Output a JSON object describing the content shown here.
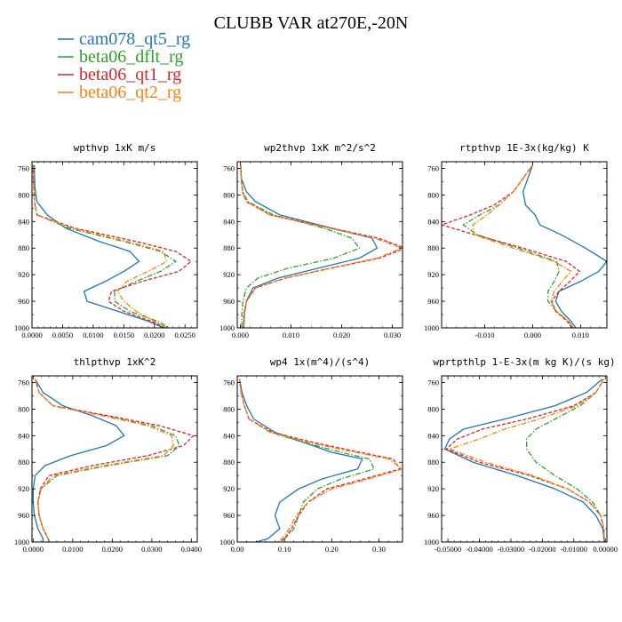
{
  "title": "CLUBB VAR at270E,-20N",
  "chart_data": {
    "title": "CLUBB VAR at270E,-20N",
    "legend": [
      {
        "name": "cam078_qt5_rg",
        "color": "#1f77b4",
        "dash": "solid"
      },
      {
        "name": "beta06_dflt_rg",
        "color": "#2ca02c",
        "dash": "dashdot"
      },
      {
        "name": "beta06_qt1_rg",
        "color": "#d62728",
        "dash": "dash"
      },
      {
        "name": "beta06_qt2_rg",
        "color": "#ff7f0e",
        "dash": "dashdot"
      }
    ],
    "panels": [
      {
        "type": "line",
        "title": "wpthvp   1xK m/s",
        "xlim": [
          0,
          0.027
        ],
        "ylim": [
          1000,
          750
        ],
        "invert_y": true,
        "xticks": [
          0,
          0.005,
          0.01,
          0.015,
          0.02,
          0.025
        ],
        "xticklabels": [
          "0.0000",
          "0.0050",
          "0.0100",
          "0.0150",
          "0.0200",
          "0.0250"
        ],
        "yticks": [
          760,
          800,
          840,
          880,
          920,
          960,
          1000
        ],
        "yticklabels": [
          "760",
          "800",
          "840",
          "880",
          "920",
          "960",
          "1000"
        ],
        "y": [
          755,
          770,
          790,
          810,
          830,
          850,
          870,
          885,
          900,
          915,
          930,
          945,
          960,
          975,
          990,
          1000
        ],
        "series": [
          {
            "values": [
              0.0004,
              0.0004,
              0.0005,
              0.0008,
              0.0025,
              0.0055,
              0.011,
              0.016,
              0.0175,
              0.015,
              0.012,
              0.0085,
              0.009,
              0.014,
              0.019,
              0.0215
            ]
          },
          {
            "values": [
              0.0002,
              0.0002,
              0.0003,
              0.0004,
              0.0008,
              0.006,
              0.015,
              0.021,
              0.0235,
              0.021,
              0.017,
              0.0135,
              0.0135,
              0.016,
              0.0205,
              0.0225
            ]
          },
          {
            "values": [
              0.0002,
              0.0002,
              0.0003,
              0.0004,
              0.0008,
              0.007,
              0.017,
              0.0235,
              0.026,
              0.024,
              0.018,
              0.013,
              0.0125,
              0.015,
              0.0195,
              0.022
            ]
          },
          {
            "values": [
              0.0002,
              0.0002,
              0.0003,
              0.0004,
              0.0008,
              0.0065,
              0.0155,
              0.0215,
              0.022,
              0.019,
              0.0155,
              0.014,
              0.015,
              0.017,
              0.02,
              0.022
            ]
          }
        ]
      },
      {
        "type": "line",
        "title": "wp2thvp   1xK m^2/s^2",
        "xlim": [
          -0.0006,
          0.032
        ],
        "ylim": [
          1000,
          750
        ],
        "invert_y": true,
        "xticks": [
          0,
          0.01,
          0.02,
          0.03
        ],
        "xticklabels": [
          "0.000",
          "0.010",
          "0.020",
          "0.030"
        ],
        "yticks": [
          760,
          800,
          840,
          880,
          920,
          960,
          1000
        ],
        "yticklabels": [
          "760",
          "800",
          "840",
          "880",
          "920",
          "960",
          "1000"
        ],
        "y": [
          755,
          775,
          795,
          810,
          830,
          850,
          865,
          880,
          895,
          910,
          925,
          940,
          960,
          980,
          1000
        ],
        "series": [
          {
            "values": [
              0.0001,
              0.0002,
              0.0012,
              0.003,
              0.0078,
              0.018,
              0.026,
              0.027,
              0.0235,
              0.0155,
              0.0075,
              0.0025,
              0.0012,
              0.0008,
              0.0007
            ]
          },
          {
            "values": [
              0.0001,
              0.0002,
              0.0005,
              0.0015,
              0.0065,
              0.0165,
              0.022,
              0.0235,
              0.0185,
              0.0095,
              0.0035,
              0.0012,
              0.0005,
              0.0003,
              0.0003
            ]
          },
          {
            "values": [
              0.0001,
              0.0002,
              0.0004,
              0.0012,
              0.006,
              0.018,
              0.0272,
              0.0325,
              0.0275,
              0.018,
              0.009,
              0.003,
              0.0012,
              0.0007,
              0.0006
            ]
          },
          {
            "values": [
              0.0001,
              0.0002,
              0.0004,
              0.0012,
              0.0058,
              0.0175,
              0.0265,
              0.0318,
              0.027,
              0.0178,
              0.0088,
              0.003,
              0.0012,
              0.0007,
              0.0006
            ]
          }
        ]
      },
      {
        "type": "line",
        "title": "rtpthvp   1E-3x(kg/kg) K",
        "xlim": [
          -0.019,
          0.0155
        ],
        "ylim": [
          1000,
          750
        ],
        "invert_y": true,
        "xticks": [
          -0.01,
          0,
          0.01
        ],
        "xticklabels": [
          "-0.010",
          "0.000",
          "0.010"
        ],
        "yticks": [
          760,
          800,
          840,
          880,
          920,
          960,
          1000
        ],
        "yticklabels": [
          "760",
          "800",
          "840",
          "880",
          "920",
          "960",
          "1000"
        ],
        "y": [
          755,
          775,
          795,
          815,
          830,
          845,
          860,
          880,
          900,
          915,
          930,
          945,
          960,
          975,
          990,
          1000
        ],
        "series": [
          {
            "values": [
              0,
              -0.001,
              -0.002,
              -0.0015,
              0.0005,
              0.0015,
              0.006,
              0.011,
              0.0155,
              0.0138,
              0.01,
              0.0055,
              0.0048,
              0.006,
              0.008,
              0.009
            ]
          },
          {
            "values": [
              0,
              -0.002,
              -0.004,
              -0.007,
              -0.011,
              -0.0145,
              -0.0115,
              -0.003,
              0.005,
              0.0055,
              0.0045,
              0.0032,
              0.0032,
              0.005,
              0.0075,
              0.0085
            ]
          },
          {
            "values": [
              0,
              -0.002,
              -0.004,
              -0.008,
              -0.013,
              -0.019,
              -0.012,
              -0.002,
              0.007,
              0.0098,
              0.0078,
              0.0055,
              0.004,
              0.0048,
              0.0072,
              0.0082
            ]
          },
          {
            "values": [
              0,
              -0.002,
              -0.004,
              -0.007,
              -0.0095,
              -0.0125,
              -0.0122,
              -0.004,
              0.0045,
              0.008,
              0.0062,
              0.0045,
              0.0038,
              0.005,
              0.0075,
              0.0085
            ]
          }
        ]
      },
      {
        "type": "line",
        "title": "thlpthvp   1xK^2",
        "xlim": [
          -0.0003,
          0.0415
        ],
        "ylim": [
          1000,
          750
        ],
        "invert_y": true,
        "xticks": [
          0,
          0.01,
          0.02,
          0.03,
          0.04
        ],
        "xticklabels": [
          "0.0000",
          "0.0100",
          "0.0200",
          "0.0300",
          "0.0400"
        ],
        "yticks": [
          760,
          800,
          840,
          880,
          920,
          960,
          1000
        ],
        "yticklabels": [
          "760",
          "800",
          "840",
          "880",
          "920",
          "960",
          "1000"
        ],
        "y": [
          755,
          775,
          795,
          810,
          825,
          840,
          855,
          870,
          885,
          900,
          920,
          940,
          960,
          980,
          995,
          1000
        ],
        "series": [
          {
            "values": [
              0.0005,
              0.0025,
              0.0075,
              0.015,
              0.021,
              0.023,
              0.0185,
              0.0095,
              0.003,
              0.0005,
              0,
              0,
              0.0003,
              0.0012,
              0.0025,
              0.0025
            ]
          },
          {
            "values": [
              0.0005,
              0.0015,
              0.005,
              0.018,
              0.03,
              0.036,
              0.037,
              0.034,
              0.019,
              0.006,
              0.002,
              0.0012,
              0.0015,
              0.0025,
              0.0038,
              0.004
            ]
          },
          {
            "values": [
              0.0005,
              0.0015,
              0.005,
              0.019,
              0.032,
              0.0405,
              0.038,
              0.029,
              0.015,
              0.004,
              0.0018,
              0.0012,
              0.0015,
              0.0025,
              0.0038,
              0.004
            ]
          },
          {
            "values": [
              0.0005,
              0.0015,
              0.005,
              0.0175,
              0.029,
              0.035,
              0.0355,
              0.033,
              0.018,
              0.005,
              0.002,
              0.0012,
              0.0015,
              0.0025,
              0.0038,
              0.004
            ]
          }
        ]
      },
      {
        "type": "line",
        "title": "wp4   1x(m^4)/(s^4)",
        "xlim": [
          0,
          0.35
        ],
        "ylim": [
          1000,
          750
        ],
        "invert_y": true,
        "xticks": [
          0,
          0.1,
          0.2,
          0.3
        ],
        "xticklabels": [
          "0.00",
          "0.10",
          "0.20",
          "0.30"
        ],
        "yticks": [
          760,
          800,
          840,
          880,
          920,
          960,
          1000
        ],
        "yticklabels": [
          "760",
          "800",
          "840",
          "880",
          "920",
          "960",
          "1000"
        ],
        "y": [
          755,
          775,
          795,
          815,
          835,
          850,
          865,
          875,
          890,
          905,
          920,
          940,
          960,
          980,
          995,
          1000
        ],
        "series": [
          {
            "values": [
              0.005,
              0.01,
              0.02,
              0.035,
              0.08,
              0.14,
              0.2,
              0.265,
              0.255,
              0.18,
              0.13,
              0.09,
              0.08,
              0.09,
              0.065,
              0.04
            ]
          },
          {
            "values": [
              0.005,
              0.008,
              0.015,
              0.025,
              0.07,
              0.14,
              0.22,
              0.28,
              0.29,
              0.22,
              0.17,
              0.14,
              0.13,
              0.12,
              0.1,
              0.09
            ]
          },
          {
            "values": [
              0.005,
              0.008,
              0.015,
              0.025,
              0.075,
              0.16,
              0.26,
              0.33,
              0.345,
              0.27,
              0.19,
              0.15,
              0.13,
              0.115,
              0.1,
              0.09
            ]
          },
          {
            "values": [
              0.005,
              0.008,
              0.015,
              0.025,
              0.07,
              0.15,
              0.25,
              0.32,
              0.35,
              0.28,
              0.2,
              0.15,
              0.125,
              0.11,
              0.095,
              0.085
            ]
          }
        ]
      },
      {
        "type": "line",
        "title": "wprtpthlp   1-E-3x(m kg K)/(s kg)",
        "xlim": [
          -0.052,
          0.0005
        ],
        "ylim": [
          1000,
          750
        ],
        "invert_y": true,
        "xticks": [
          -0.05,
          -0.04,
          -0.03,
          -0.02,
          -0.01,
          0
        ],
        "xticklabels": [
          "-0.05000",
          "-0.04000",
          "-0.03000",
          "-0.02000",
          "-0.01000",
          "0.00000"
        ],
        "yticks": [
          760,
          800,
          840,
          880,
          920,
          960,
          1000
        ],
        "yticklabels": [
          "760",
          "800",
          "840",
          "880",
          "920",
          "960",
          "1000"
        ],
        "y": [
          755,
          775,
          795,
          815,
          830,
          845,
          860,
          880,
          900,
          920,
          940,
          960,
          980,
          1000
        ],
        "series": [
          {
            "values": [
              -0.001,
              -0.006,
              -0.016,
              -0.032,
              -0.045,
              -0.0495,
              -0.051,
              -0.042,
              -0.028,
              -0.016,
              -0.007,
              -0.003,
              -0.0008,
              -0.0003
            ]
          },
          {
            "values": [
              -0.0005,
              -0.003,
              -0.008,
              -0.016,
              -0.022,
              -0.025,
              -0.025,
              -0.022,
              -0.016,
              -0.009,
              -0.004,
              -0.0015,
              -0.0005,
              -0.0003
            ]
          },
          {
            "values": [
              -0.0005,
              -0.003,
              -0.01,
              -0.025,
              -0.039,
              -0.047,
              -0.0505,
              -0.04,
              -0.024,
              -0.012,
              -0.005,
              -0.0015,
              -0.0005,
              -0.0003
            ]
          },
          {
            "values": [
              -0.0005,
              -0.003,
              -0.009,
              -0.021,
              -0.032,
              -0.04,
              -0.0495,
              -0.038,
              -0.023,
              -0.012,
              -0.005,
              -0.0015,
              -0.0005,
              -0.0003
            ]
          }
        ]
      }
    ]
  }
}
